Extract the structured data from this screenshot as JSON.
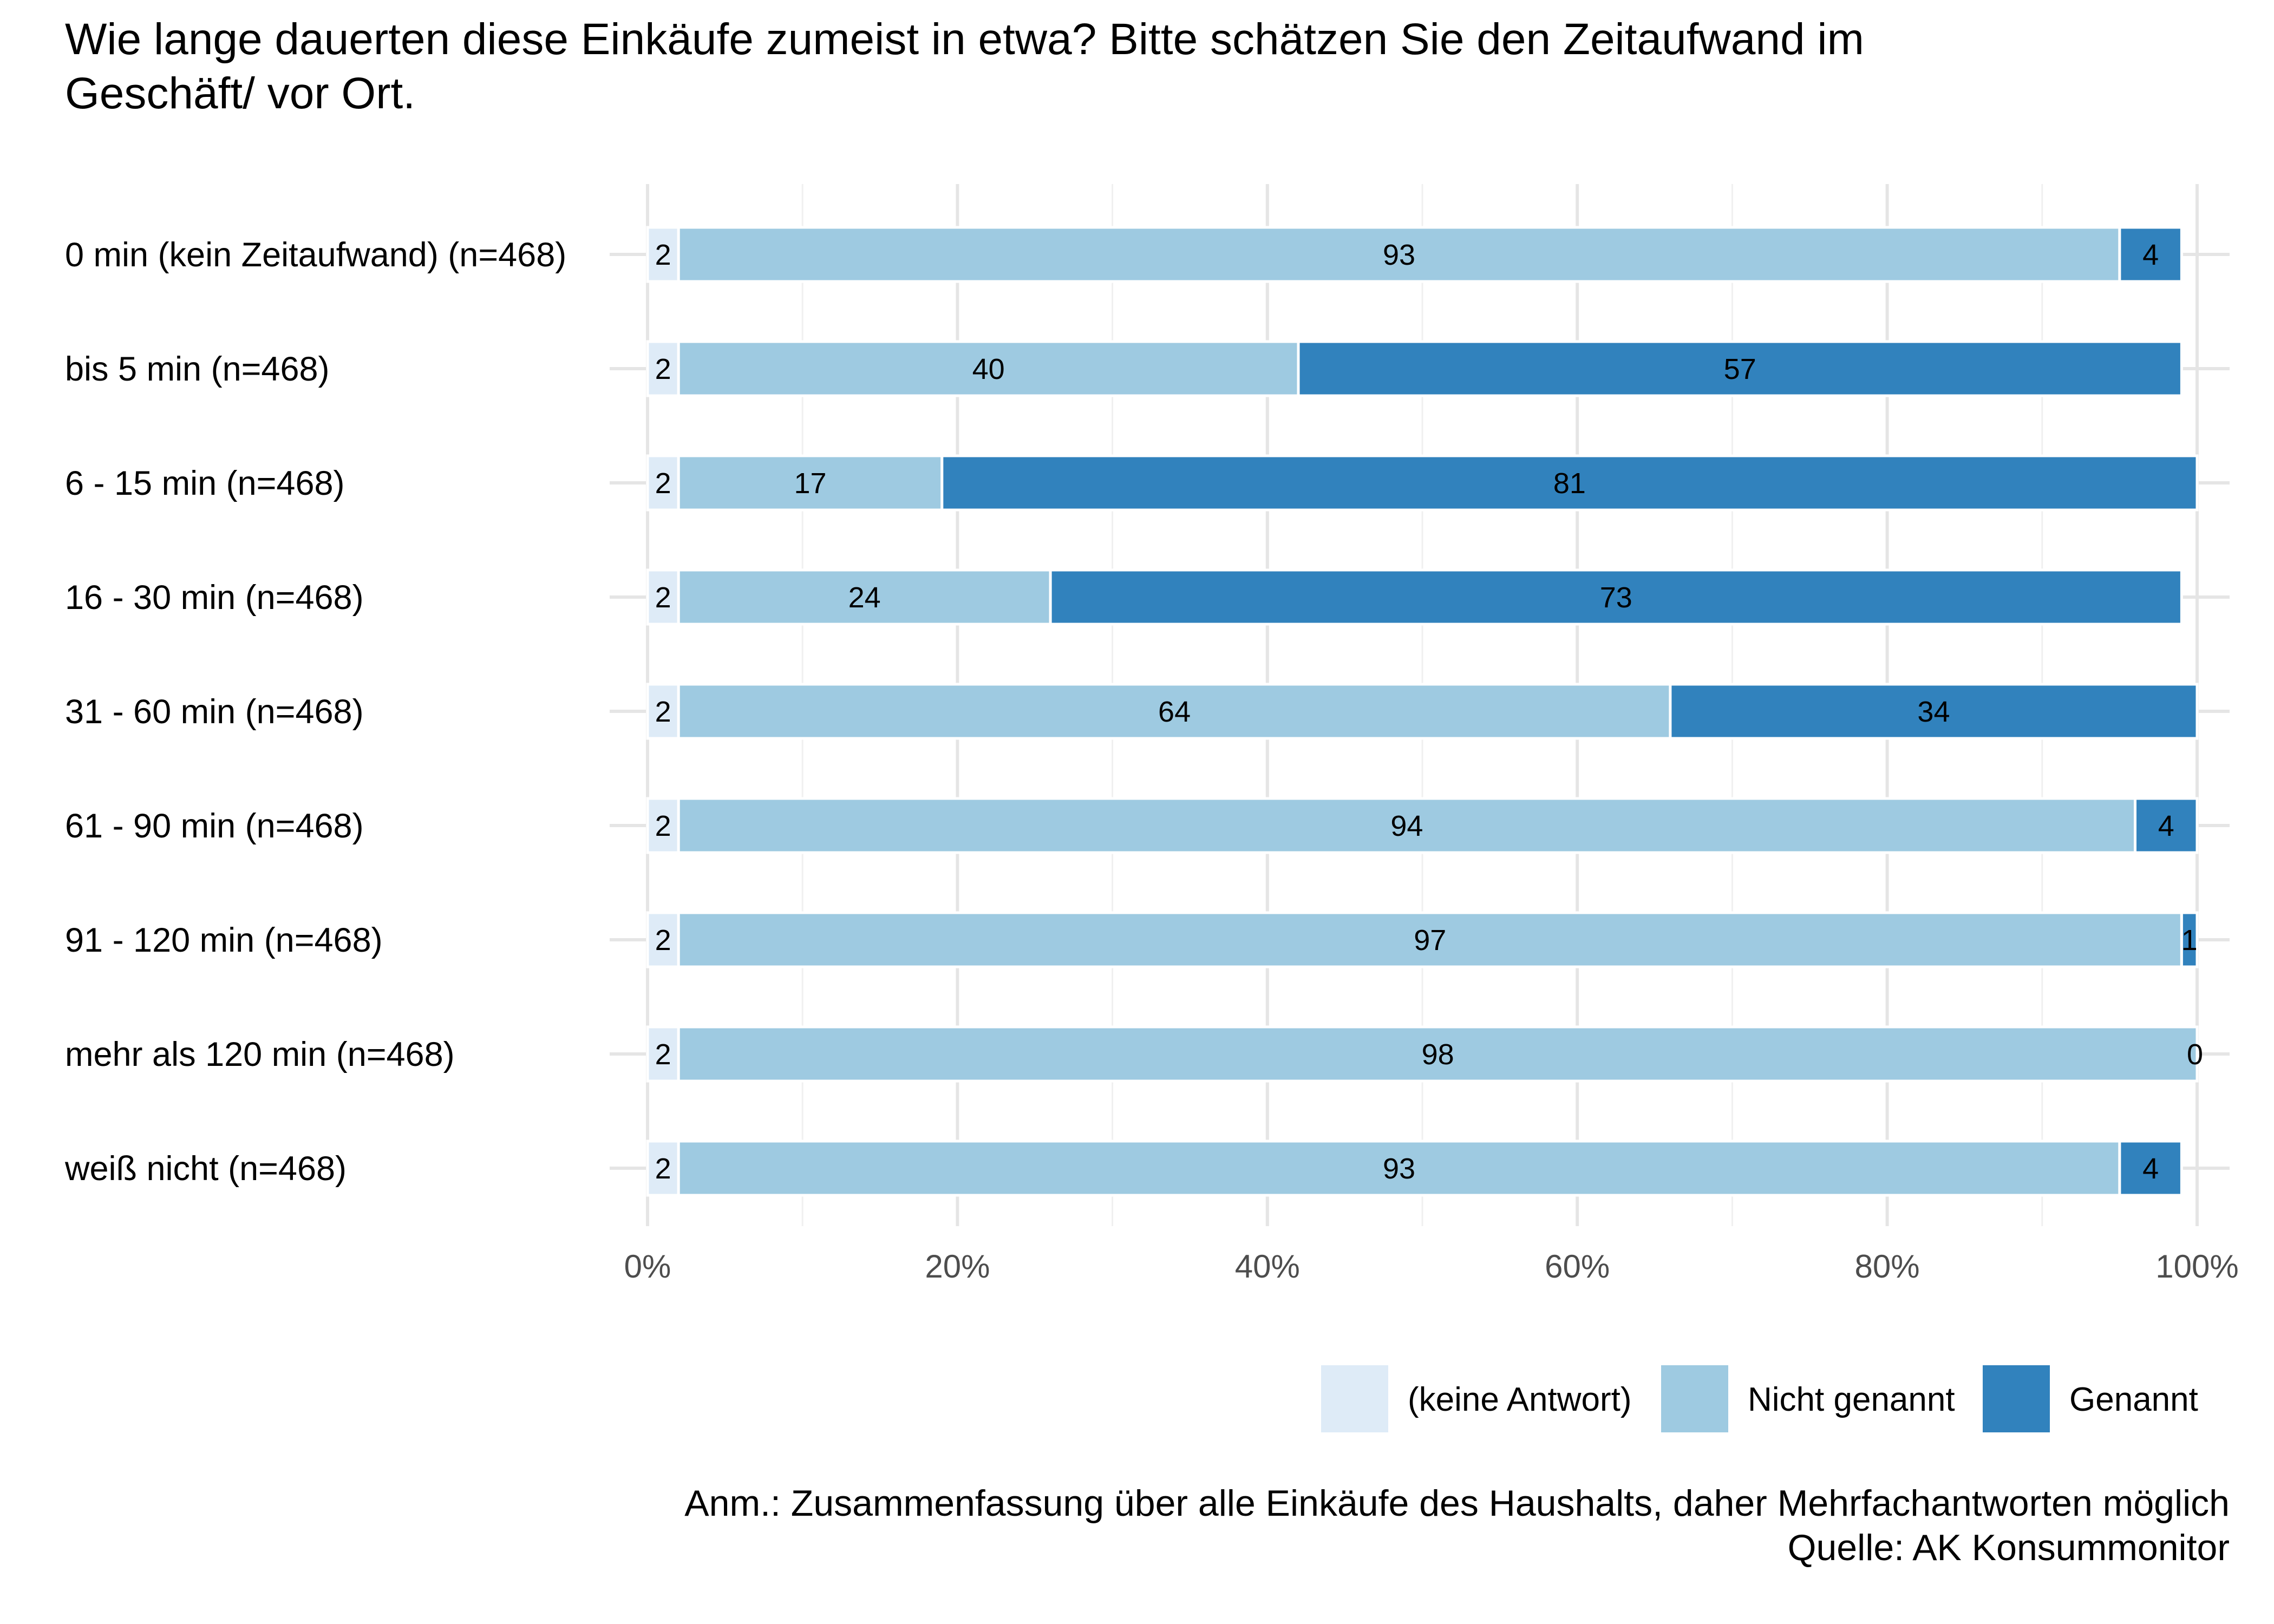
{
  "chart_data": {
    "type": "bar",
    "orientation": "horizontal",
    "stacked": true,
    "title": "Wie lange dauerten diese Einkäufe zumeist in etwa? Bitte schätzen Sie den Zeitaufwand im Geschäft/ vor Ort.",
    "title_lines": [
      "Wie lange dauerten diese Einkäufe zumeist in etwa? Bitte schätzen Sie den Zeitaufwand im",
      "Geschäft/ vor Ort."
    ],
    "categories": [
      "0 min (kein Zeitaufwand) (n=468)",
      "bis 5 min (n=468)",
      "6 - 15 min (n=468)",
      "16 - 30 min (n=468)",
      "31 - 60 min (n=468)",
      "61 - 90 min (n=468)",
      "91 - 120 min (n=468)",
      "mehr als 120 min (n=468)",
      "weiß nicht (n=468)"
    ],
    "series": [
      {
        "name": "(keine Antwort)",
        "color": "#deebf7",
        "values": [
          2,
          2,
          2,
          2,
          2,
          2,
          2,
          2,
          2
        ]
      },
      {
        "name": "Nicht genannt",
        "color": "#9ecae1",
        "values": [
          93,
          40,
          17,
          24,
          64,
          94,
          97,
          98,
          93
        ]
      },
      {
        "name": "Genannt",
        "color": "#3182bd",
        "values": [
          4,
          57,
          81,
          73,
          34,
          4,
          1,
          0,
          4
        ]
      }
    ],
    "xlim": [
      0,
      100
    ],
    "x_ticks": [
      0,
      20,
      40,
      60,
      80,
      100
    ],
    "x_tick_labels": [
      "0%",
      "20%",
      "40%",
      "60%",
      "80%",
      "100%"
    ],
    "xlabel": "",
    "ylabel": "",
    "grid": true,
    "legend_position": "bottom-right",
    "notes": [
      "Anm.: Zusammenfassung über alle Einkäufe des Haushalts, daher Mehrfachantworten möglich",
      "Quelle: AK Konsummonitor"
    ]
  }
}
